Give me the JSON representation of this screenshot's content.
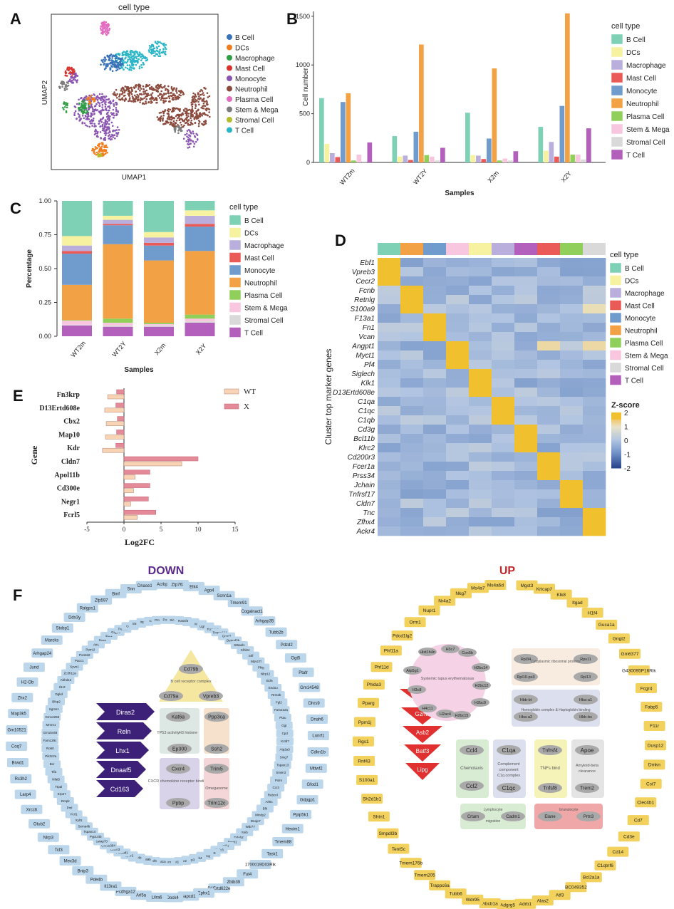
{
  "legend_title": "cell type",
  "cell_types": [
    {
      "name": "B Cell",
      "color_umap": "#3a72b8",
      "color_bar": "#7fd1b5"
    },
    {
      "name": "DCs",
      "color_umap": "#f07c1c",
      "color_bar": "#f6f2a0"
    },
    {
      "name": "Macrophage",
      "color_umap": "#2e9e43",
      "color_bar": "#b9aedc"
    },
    {
      "name": "Mast Cell",
      "color_umap": "#d8322d",
      "color_bar": "#ea5a57"
    },
    {
      "name": "Monocyte",
      "color_umap": "#8a55b0",
      "color_bar": "#6f9bcd"
    },
    {
      "name": "Neutrophil",
      "color_umap": "#8b4a3c",
      "color_bar": "#f2a245"
    },
    {
      "name": "Plasma Cell",
      "color_umap": "#e36cc0",
      "color_bar": "#8fcf5a"
    },
    {
      "name": "Stem & Mega",
      "color_umap": "#7d7d7d",
      "color_bar": "#f9c6e0"
    },
    {
      "name": "Stromal Cell",
      "color_umap": "#b3bc2a",
      "color_bar": "#d9d9d9"
    },
    {
      "name": "T Cell",
      "color_umap": "#2bb6c7",
      "color_bar": "#b35fbc"
    }
  ],
  "panels": {
    "A": {
      "letter": "A",
      "title": "cell type",
      "xlabel": "UMAP1",
      "ylabel": "UMAP2"
    },
    "B": {
      "letter": "B"
    },
    "C": {
      "letter": "C"
    },
    "D": {
      "letter": "D"
    },
    "E": {
      "letter": "E"
    },
    "F": {
      "letter": "F"
    }
  },
  "chart_data": [
    {
      "id": "B",
      "type": "bar",
      "xlabel": "Samples",
      "ylabel": "Cell number",
      "categories": [
        "WT2m",
        "WT2Y",
        "X2m",
        "X2Y"
      ],
      "yticks": [
        0,
        500,
        1000,
        1500
      ],
      "ylim": [
        0,
        1550
      ],
      "series": [
        {
          "name": "B Cell",
          "values": [
            660,
            270,
            510,
            365
          ]
        },
        {
          "name": "DCs",
          "values": [
            190,
            60,
            75,
            120
          ]
        },
        {
          "name": "Macrophage",
          "values": [
            95,
            70,
            70,
            210
          ]
        },
        {
          "name": "Mast Cell",
          "values": [
            55,
            25,
            35,
            60
          ]
        },
        {
          "name": "Monocyte",
          "values": [
            620,
            315,
            245,
            580
          ]
        },
        {
          "name": "Neutrophil",
          "values": [
            710,
            1210,
            965,
            1530
          ]
        },
        {
          "name": "Plasma Cell",
          "values": [
            20,
            75,
            20,
            80
          ]
        },
        {
          "name": "Stem & Mega",
          "values": [
            80,
            60,
            40,
            80
          ]
        },
        {
          "name": "Stromal Cell",
          "values": [
            10,
            20,
            20,
            30
          ]
        },
        {
          "name": "T Cell",
          "values": [
            205,
            150,
            115,
            350
          ]
        }
      ]
    },
    {
      "id": "C",
      "type": "bar",
      "stacked": true,
      "xlabel": "Samples",
      "ylabel": "Percentage",
      "categories": [
        "WT2m",
        "WT2Y",
        "X2m",
        "X2Y"
      ],
      "yticks": [
        "0.00",
        "0.25",
        "0.50",
        "0.75",
        "1.00"
      ],
      "ylim": [
        0,
        1
      ],
      "series": [
        {
          "name": "T Cell",
          "values": [
            0.08,
            0.07,
            0.07,
            0.1
          ]
        },
        {
          "name": "Stromal Cell",
          "values": [
            0.005,
            0.01,
            0.01,
            0.01
          ]
        },
        {
          "name": "Stem & Mega",
          "values": [
            0.03,
            0.02,
            0.01,
            0.02
          ]
        },
        {
          "name": "Plasma Cell",
          "values": [
            0.005,
            0.03,
            0.01,
            0.03
          ]
        },
        {
          "name": "Neutrophil",
          "values": [
            0.26,
            0.55,
            0.46,
            0.47
          ]
        },
        {
          "name": "Monocyte",
          "values": [
            0.23,
            0.14,
            0.11,
            0.18
          ]
        },
        {
          "name": "Mast Cell",
          "values": [
            0.02,
            0.01,
            0.02,
            0.02
          ]
        },
        {
          "name": "Macrophage",
          "values": [
            0.04,
            0.03,
            0.04,
            0.06
          ]
        },
        {
          "name": "DCs",
          "values": [
            0.07,
            0.03,
            0.04,
            0.04
          ]
        },
        {
          "name": "B Cell",
          "values": [
            0.26,
            0.11,
            0.23,
            0.07
          ]
        }
      ]
    },
    {
      "id": "D",
      "type": "heatmap",
      "ylabel": "Cluster top marker genes",
      "column_order": [
        "B Cell",
        "Neutrophil",
        "Monocyte",
        "Stem & Mega",
        "DCs",
        "Macrophage",
        "T Cell",
        "Mast Cell",
        "Plasma Cell",
        "Stromal Cell"
      ],
      "genes": [
        "Ebf1",
        "Vpreb3",
        "Cecr2",
        "Fcnb",
        "Retnlg",
        "S100a9",
        "F13a1",
        "Fn1",
        "Vcan",
        "Angpt1",
        "Myct1",
        "Pf4",
        "Siglech",
        "Klk1",
        "D13Ertd608e",
        "C1qa",
        "C1qc",
        "C1qb",
        "Cd3g",
        "Bcl11b",
        "Klrc2",
        "Cd200r3",
        "Fcer1a",
        "Prss34",
        "Jchain",
        "Tnfrsf17",
        "Cldn7",
        "Tnc",
        "Zfhx4",
        "Ackr4"
      ],
      "high_col": [
        0,
        0,
        0,
        1,
        1,
        1,
        2,
        2,
        2,
        3,
        3,
        3,
        4,
        4,
        4,
        5,
        5,
        5,
        6,
        6,
        6,
        7,
        7,
        7,
        8,
        8,
        8,
        9,
        9,
        9
      ],
      "colorbar": {
        "title": "Z-score",
        "ticks": [
          "2",
          "1",
          "0",
          "-1",
          "-2"
        ]
      }
    },
    {
      "id": "E",
      "type": "bar",
      "orientation": "horizontal",
      "xlabel": "Log2FC",
      "ylabel": "Gene",
      "genes": [
        "Fn3krp",
        "D13Ertd608e",
        "Cbx2",
        "Map10",
        "Kdr",
        "Cldn7",
        "Apol11b",
        "Cd300e",
        "Negr1",
        "Fcrl5"
      ],
      "xticks": [
        -5,
        0,
        5,
        10,
        15
      ],
      "xlim": [
        -5,
        15
      ],
      "series": [
        {
          "name": "WT",
          "values": [
            -2.2,
            -2.6,
            -2.4,
            -2.5,
            -2.9,
            7.8,
            1.5,
            1.3,
            0.9,
            1.8
          ]
        },
        {
          "name": "X",
          "values": [
            -1.0,
            -1.1,
            -0.9,
            -1.0,
            -1.1,
            10.0,
            3.5,
            3.5,
            3.3,
            4.3
          ]
        }
      ]
    }
  ],
  "networkF": {
    "down_title": "DOWN",
    "up_title": "UP",
    "down_outer": [
      "Ago4",
      "Scnn1a",
      "Tmem91",
      "Cogalnact1",
      "Arhgap35",
      "Tubb2b",
      "Pdzd2",
      "Ggt5",
      "Ptafr",
      "Gm14548",
      "Dhrs9",
      "Dnah6",
      "Lonrf1",
      "Cdkn1b",
      "Mttwf2",
      "Gfod1",
      "Gdpgp1",
      "Ppip5k1",
      "Hexim1",
      "Tmem88",
      "Task1",
      "1700019D03Rik",
      "Fut4",
      "Zbtb39",
      "D1Ertd622e",
      "Ephx1",
      "Sapcd1",
      "Dock4",
      "Lilra6",
      "Arl5a",
      "Pcdhga12",
      "Il13ra1",
      "Pde4b",
      "Bnip3",
      "Mex3d",
      "Tcf3",
      "Nlrp3",
      "Otub2",
      "Xrcc6",
      "Larp4",
      "Rc3h2",
      "Brwd1",
      "Coq7",
      "Gm10521",
      "Map3k5",
      "Zhx2",
      "H2-Ob",
      "Jund",
      "Arhgap24",
      "Marcks",
      "Stxbp1",
      "Ddx3y",
      "Ralgps1",
      "Zfp597",
      "Bmf",
      "Snn",
      "Dnase1l2",
      "Acrbp",
      "Ztp763",
      "Elk4"
    ],
    "down_inner": [
      "Ubxn7",
      "Mpt3",
      "Ugt1a7c",
      "Tcc22d3",
      "Tmem164",
      "Gpat3",
      "Dennd5b",
      "St6gal1",
      "Klhl24",
      "Shf",
      "Mpv17l",
      "Pkig",
      "Nlrp12",
      "Bcl6",
      "Endou",
      "Rrm2b",
      "Fgl2",
      "Fam222a",
      "Ptau",
      "Ogt",
      "Cpd",
      "Kctd7",
      "Atp2a3",
      "Smg7",
      "Tspan13",
      "Smim3",
      "Polm",
      "Ccr3",
      "Rubcnl",
      "Arl6c",
      "Blk",
      "Mindy2",
      "Dnajc7",
      "Wdr77",
      "Spib",
      "Ddah2",
      "Bank1",
      "Igf1r",
      "Khdc3",
      "Ints9",
      "Siglecg",
      "Abcb4",
      "N4bp3",
      "C5ar2",
      "Ndst1",
      "Mtum",
      "Cacna1a",
      "Slamf6",
      "Fam169b",
      "Txnl4b",
      "Lpar2",
      "Pou2af1",
      "Chrm3",
      "Gm38394",
      "Swap70",
      "Pyp1r3b",
      "Tspan14",
      "Sema4b",
      "Xylt1",
      "Fcrl1",
      "Pml",
      "Dmpk",
      "Erp27",
      "Ttpal",
      "Nfat5",
      "Tifa",
      "Bcr",
      "Pik3c2a",
      "Ro60",
      "Fam129c",
      "Gm15448",
      "Mmrn1",
      "Gm12258",
      "Sgms1",
      "Bfsp2",
      "Dgkd",
      "Il1r2",
      "Abhd13",
      "Zc3h11a",
      "Syvn1",
      "Pacc1",
      "Pomtd2",
      "Ppm1l",
      "Aff1",
      "Snx8",
      "Dtx1",
      "Gigyf1",
      "Trec16",
      "Cdk3",
      "Steap4",
      "Inpp5a",
      "Conj",
      "Pmaip1",
      "Pou5f1",
      "Slc15a2",
      "Rassf3"
    ],
    "down_arrows": [
      "Diras2",
      "Reln",
      "Lhx1",
      "Dnaaf5",
      "Cd163"
    ],
    "down_groups": [
      {
        "label": "B cell receptor complex",
        "genes": [
          "Cd79b",
          "Cd79a",
          "Vpreb3"
        ]
      },
      {
        "label": "TP53 activity",
        "genes": [
          "Kat6a",
          "Ep300"
        ]
      },
      {
        "label": "H3 histone",
        "genes": []
      },
      {
        "label": "",
        "genes": [
          "Ppp3ca",
          "Ssh2"
        ]
      },
      {
        "label": "CXCR chemokine receptor binding",
        "genes": [
          "Cxcr4",
          "Ppbp"
        ]
      },
      {
        "label": "Omegasome",
        "genes": [
          "Trim5",
          "Trim12c"
        ]
      }
    ],
    "up_outer": [
      "Mgst3",
      "Krtcap2",
      "Klk8",
      "Itgad",
      "H1f4",
      "Guca1a",
      "Gngt2",
      "Gm6377",
      "G430095P16Rik",
      "Fcgr4",
      "Fabp5",
      "F11r",
      "Dusp12",
      "Dmkn",
      "Cst7",
      "Clec4b1",
      "Cd7",
      "Cd3e",
      "Cd14",
      "C1qtnf6",
      "Bcl2a1a",
      "BC049352",
      "Atf3",
      "Alas2",
      "Adrb1",
      "Adgrg5",
      "Abcb1a",
      "Wdr95",
      "Tubb6",
      "Trappc6a",
      "Tmem205",
      "Tmem176b",
      "Tent5c",
      "Smpdl3b",
      "Shtn1",
      "Sh2d1b1",
      "S100a1",
      "Rnf43",
      "Rgs1",
      "Ppm1j",
      "Pparg",
      "Phlda3",
      "Phf11d",
      "Phf11a",
      "Pdcd1lg2",
      "Orm1",
      "Nupr1",
      "Nr4a2",
      "Nkg7",
      "Ms4a7",
      "Ms4a6d"
    ],
    "up_arrows": [
      "Cdkn2a",
      "Gzmk",
      "Asb2",
      "Batf3",
      "Lipg"
    ],
    "up_groups": [
      {
        "label": "Systemic lupus erythematosus",
        "genes": [
          "H3c7",
          "Cox5b",
          "Hist1h4n",
          "Atp5g1",
          "H2bc14",
          "H3c8",
          "H2bc12",
          "H4c11",
          "H2bc9",
          "H2ac4",
          "H2bc15"
        ]
      },
      {
        "label": "Cytoplasmic ribosomal proteins",
        "genes": [
          "Rpl34",
          "Rps11",
          "Rpl10-ps3",
          "Rpl13"
        ]
      },
      {
        "label": "Hemoglobin complex & Haptoglobin binding",
        "genes": [
          "Hbb-bt",
          "Hba-a1",
          "Hba-a2",
          "Hbb-bs"
        ]
      },
      {
        "label": "Chemotaxis",
        "genes": [
          "Ccl4",
          "Ccl2"
        ]
      },
      {
        "label": "Complement component C1q complex",
        "genes": [
          "C1qa",
          "C1qc"
        ]
      },
      {
        "label": "TNFs bind",
        "genes": [
          "Tnfrsf4",
          "Tnfsf8"
        ]
      },
      {
        "label": "Amyloid-beta clearance",
        "genes": [
          "Apoe",
          "Trem2"
        ]
      },
      {
        "label": "Lymphocyte migration",
        "genes": [
          "Crtam",
          "Cadm1"
        ]
      },
      {
        "label": "Granulocyte",
        "genes": [
          "Elane",
          "Prtn3"
        ]
      }
    ]
  }
}
